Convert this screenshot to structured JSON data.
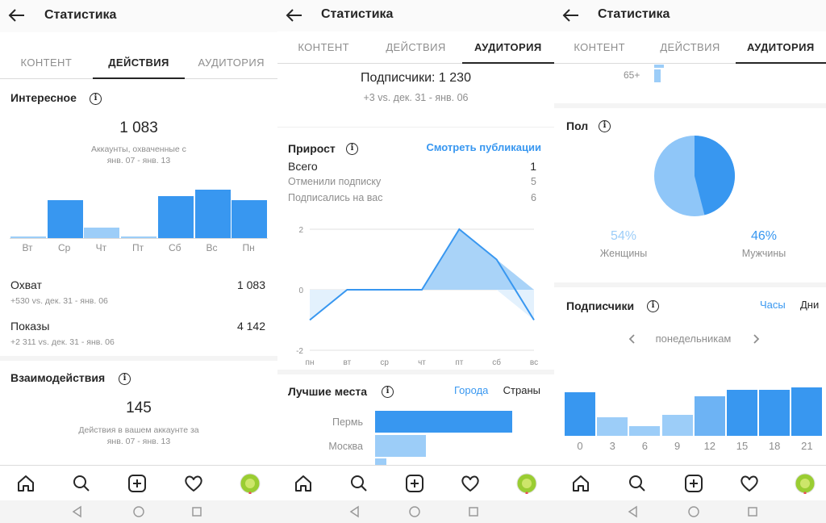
{
  "title": "Статистика",
  "tabs": [
    "КОНТЕНТ",
    "ДЕЙСТВИЯ",
    "АУДИТОРИЯ"
  ],
  "colors": {
    "accent": "#3897f0",
    "accent_light": "#9ccdf8",
    "text": "#262626",
    "gray": "#8e8e8e"
  },
  "s1": {
    "interesting": {
      "title": "Интересное",
      "value": "1 083",
      "caption_1": "Аккаунты, охваченные с",
      "caption_2": "янв. 07 - янв. 13",
      "days": [
        "Вт",
        "Ср",
        "Чт",
        "Пт",
        "Сб",
        "Вс",
        "Пн"
      ],
      "bars": [
        0.01,
        0.78,
        0.22,
        0.04,
        0.87,
        1.0,
        0.79
      ]
    },
    "reach": {
      "label": "Охват",
      "value": "1 083",
      "sub": "+530 vs. дек. 31 - янв. 06"
    },
    "impressions": {
      "label": "Показы",
      "value": "4 142",
      "sub": "+2 311 vs. дек. 31 - янв. 06"
    },
    "interactions": {
      "title": "Взаимодействия",
      "value": "145",
      "caption_1": "Действия в вашем аккаунте за",
      "caption_2": "янв. 07 - янв. 13"
    }
  },
  "s2": {
    "followers": {
      "value": "Подписчики: 1 230",
      "sub": "+3 vs. дек. 31 - янв. 06"
    },
    "growth": {
      "title": "Прирост",
      "link": "Смотреть публикации",
      "rows": [
        {
          "label": "Всего",
          "value": "1"
        },
        {
          "label": "Отменили подписку",
          "value": "5"
        },
        {
          "label": "Подписались на вас",
          "value": "6"
        }
      ]
    },
    "chart_data": {
      "type": "area",
      "x": [
        "пн",
        "вт",
        "ср",
        "чт",
        "пт",
        "сб",
        "вс"
      ],
      "series": [
        {
          "values": [
            -1,
            0,
            0,
            0,
            2,
            1,
            -1
          ]
        }
      ],
      "yticks": [
        "2",
        "0",
        "-2"
      ],
      "ylim": [
        -2,
        2
      ]
    },
    "places": {
      "title": "Лучшие места",
      "link_cities": "Города",
      "link_countries": "Страны",
      "items": [
        {
          "name": "Пермь",
          "value": 1.0
        },
        {
          "name": "Москва",
          "value": 0.37
        },
        {
          "name": "",
          "value": 0.08
        }
      ]
    }
  },
  "s3": {
    "age_label": "65+",
    "gender": {
      "title": "Пол",
      "women_pct": "54%",
      "women_label": "Женщины",
      "men_pct": "46%",
      "men_label": "Мужчины",
      "women_value": 54,
      "men_value": 46
    },
    "followers_chart": {
      "title": "Подписчики",
      "link_hours": "Часы",
      "link_days": "Дни",
      "day_selector": "понедельникам",
      "hours": [
        "0",
        "3",
        "6",
        "9",
        "12",
        "15",
        "18",
        "21"
      ],
      "bars": [
        0.9,
        0.38,
        0.2,
        0.44,
        0.81,
        0.95,
        0.95,
        1.0
      ]
    }
  }
}
